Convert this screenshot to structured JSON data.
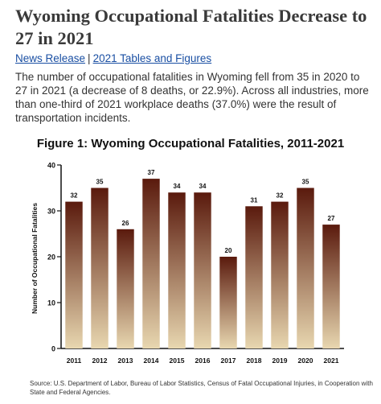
{
  "article": {
    "headline": "Wyoming Occupational Fatalities Decrease to 27 in 2021",
    "links": [
      {
        "label": "News Release"
      },
      {
        "label": "2021 Tables and Figures"
      }
    ],
    "link_separator": "|",
    "lede": "The number of occupational fatalities in Wyoming fell from 35 in 2020 to 27 in 2021 (a decrease of 8 deaths, or 22.9%). Across all industries, more than one-third of 2021 workplace deaths (37.0%) were the result of transportation incidents.",
    "link_color": "#1a4fa3"
  },
  "chart_data": {
    "type": "bar",
    "title": "Figure 1: Wyoming Occupational Fatalities, 2011-2021",
    "xlabel": "",
    "ylabel": "Number of Occupational Fatalities",
    "categories": [
      "2011",
      "2012",
      "2013",
      "2014",
      "2015",
      "2016",
      "2017",
      "2018",
      "2019",
      "2020",
      "2021"
    ],
    "values": [
      32,
      35,
      26,
      37,
      34,
      34,
      20,
      31,
      32,
      35,
      27
    ],
    "ylim": [
      0,
      40
    ],
    "yticks": [
      0,
      10,
      20,
      30,
      40
    ],
    "data_labels": true,
    "grid": false,
    "legend": "none",
    "bar_gradient": {
      "top": "#5a1a0d",
      "bottom": "#e8d7b0"
    },
    "source": "Source: U.S. Department of Labor, Bureau of Labor Statistics, Census of Fatal Occupational Injuries, in Cooperation with State and Federal Agencies."
  }
}
